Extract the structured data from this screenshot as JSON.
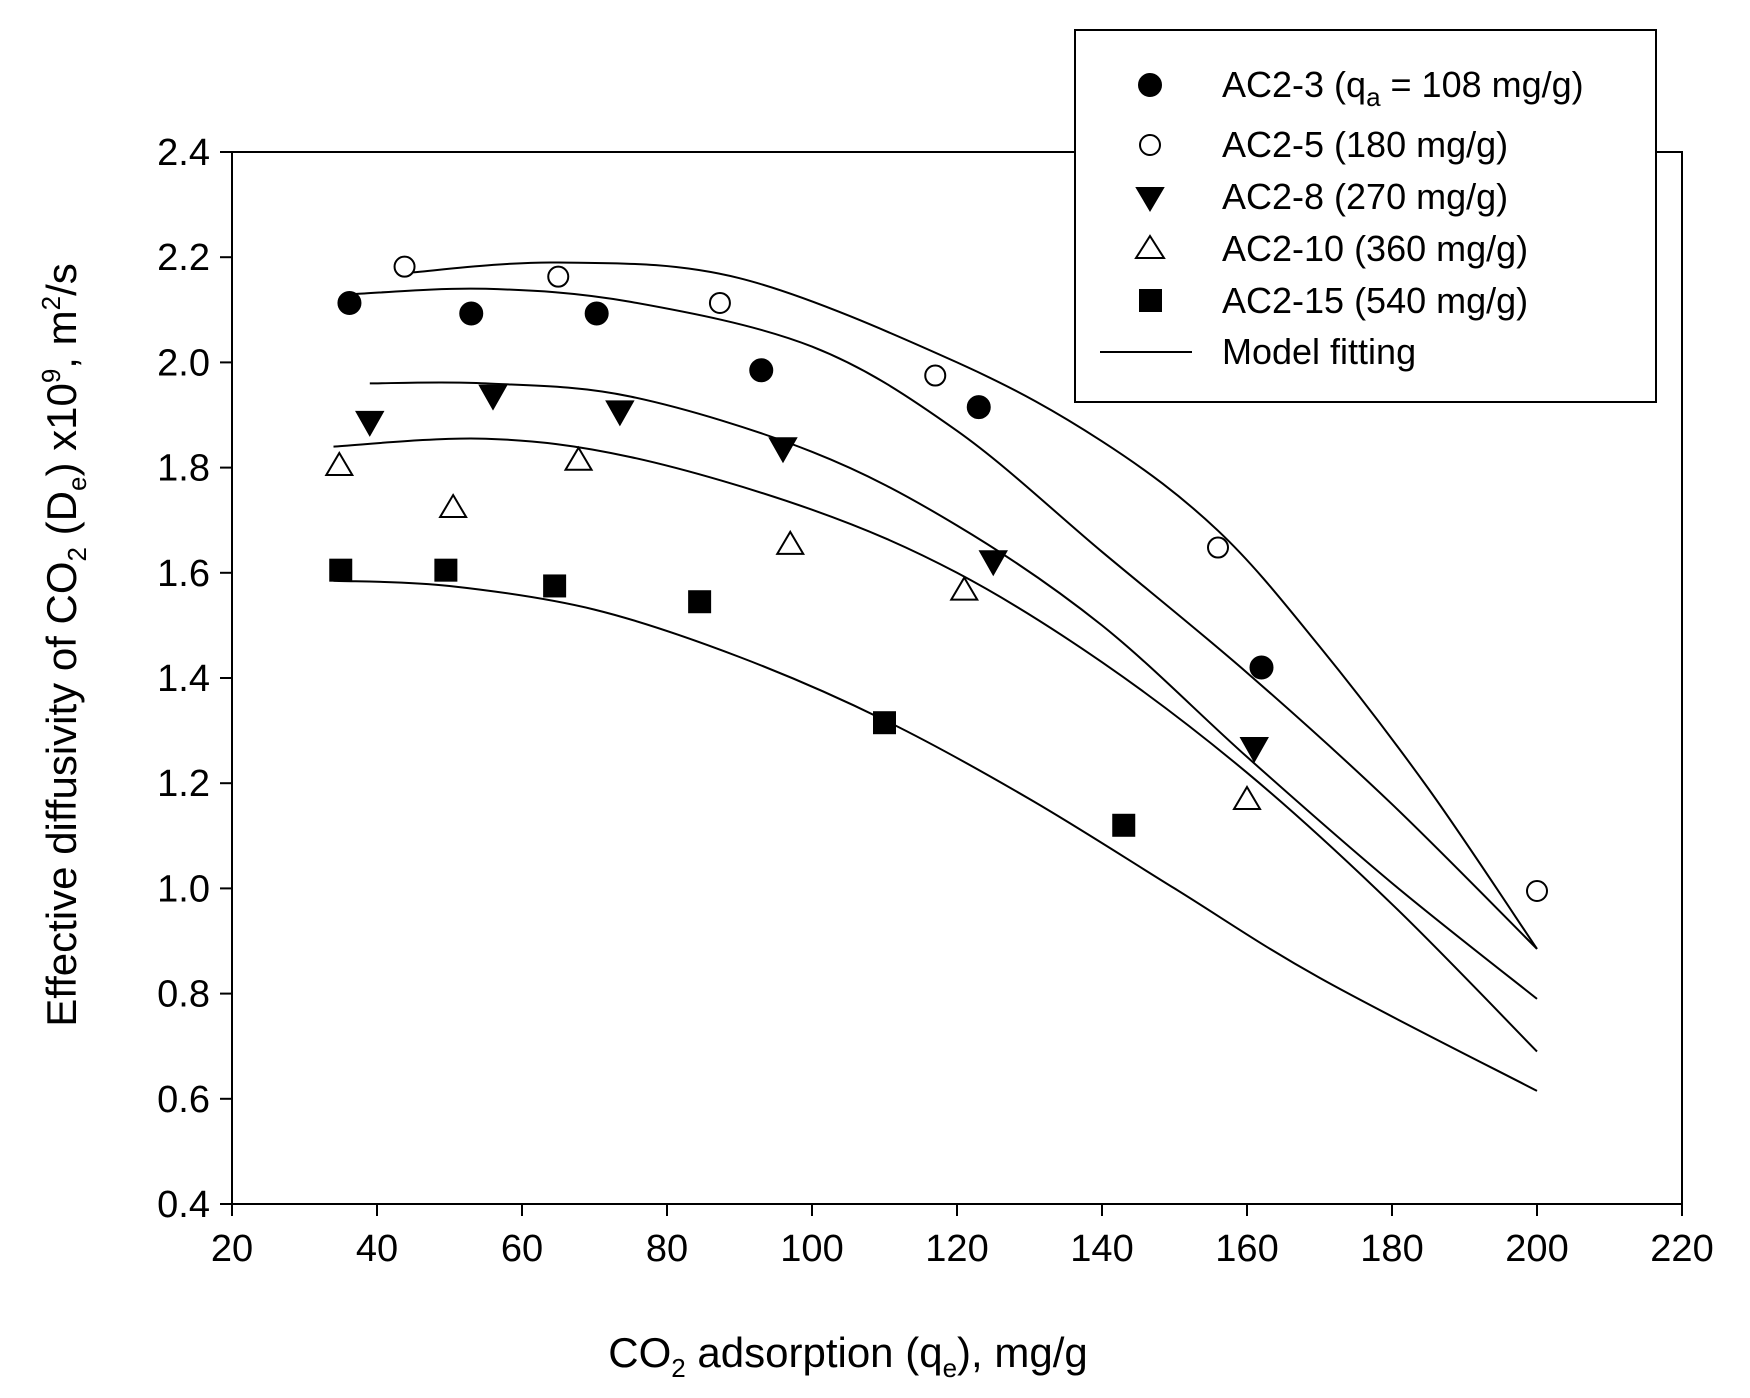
{
  "chart_data": {
    "type": "scatter",
    "xlabel": "CO2 adsorption (qe), mg/g",
    "xlabel_parts": {
      "pre": "CO",
      "sub1": "2",
      "mid": " adsorption (q",
      "sub2": "e",
      "post": "), mg/g"
    },
    "ylabel": "Effective diffusivity of CO2 (De) x10^9, m^2/s",
    "ylabel_parts": {
      "pre": "Effective diffusivity of CO",
      "sub1": "2",
      "mid1": " (D",
      "sub2": "e",
      "mid2": ") x10",
      "sup1": "9",
      "mid3": ", m",
      "sup2": "2",
      "post": "/s"
    },
    "xlim": [
      20,
      220
    ],
    "ylim": [
      0.4,
      2.4
    ],
    "x_ticks": [
      "20",
      "40",
      "60",
      "80",
      "100",
      "120",
      "140",
      "160",
      "180",
      "200",
      "220"
    ],
    "y_ticks": [
      "0.4",
      "0.6",
      "0.8",
      "1.0",
      "1.2",
      "1.4",
      "1.6",
      "1.8",
      "2.0",
      "2.2",
      "2.4"
    ],
    "legend_position": "top-right",
    "series": [
      {
        "name": "AC2-3 (qa = 108 mg/g)",
        "label_parts": {
          "pre": "AC2-3 (q",
          "sub": "a",
          "post": " = 108 mg/g)"
        },
        "marker": "filled-circle",
        "points": [
          [
            36.2,
            2.113
          ],
          [
            53,
            2.093
          ],
          [
            70.3,
            2.093
          ],
          [
            93,
            1.985
          ],
          [
            123,
            1.915
          ],
          [
            162,
            1.42
          ]
        ]
      },
      {
        "name": "AC2-5 (180 mg/g)",
        "label_parts": {
          "pre": "AC2-5 (180 mg/g)",
          "sub": "",
          "post": ""
        },
        "marker": "open-circle",
        "points": [
          [
            43.8,
            2.182
          ],
          [
            65,
            2.163
          ],
          [
            87.3,
            2.113
          ],
          [
            117,
            1.975
          ],
          [
            156,
            1.648
          ],
          [
            200,
            0.995
          ]
        ]
      },
      {
        "name": "AC2-8 (270 mg/g)",
        "label_parts": {
          "pre": "AC2-8 (270 mg/g)",
          "sub": "",
          "post": ""
        },
        "marker": "filled-triangle-down",
        "points": [
          [
            39,
            1.885
          ],
          [
            56,
            1.935
          ],
          [
            73.5,
            1.905
          ],
          [
            96,
            1.835
          ],
          [
            125,
            1.62
          ],
          [
            161,
            1.265
          ]
        ]
      },
      {
        "name": "AC2-10 (360 mg/g)",
        "label_parts": {
          "pre": "AC2-10 (360 mg/g)",
          "sub": "",
          "post": ""
        },
        "marker": "open-triangle-up",
        "points": [
          [
            34.8,
            1.805
          ],
          [
            50.5,
            1.725
          ],
          [
            67.8,
            1.815
          ],
          [
            97,
            1.655
          ],
          [
            121,
            1.568
          ],
          [
            160,
            1.17
          ]
        ]
      },
      {
        "name": "AC2-15 (540 mg/g)",
        "label_parts": {
          "pre": "AC2-15 (540 mg/g)",
          "sub": "",
          "post": ""
        },
        "marker": "filled-square",
        "points": [
          [
            35,
            1.605
          ],
          [
            49.5,
            1.605
          ],
          [
            64.5,
            1.575
          ],
          [
            84.5,
            1.545
          ],
          [
            110,
            1.315
          ],
          [
            143,
            1.12
          ]
        ]
      }
    ],
    "model_fitting": {
      "name": "Model fitting",
      "curves": [
        [
          [
            44,
            2.17
          ],
          [
            65,
            2.19
          ],
          [
            90,
            2.16
          ],
          [
            120,
            2.0
          ],
          [
            140,
            1.85
          ],
          [
            156,
            1.68
          ],
          [
            170,
            1.46
          ],
          [
            185,
            1.19
          ],
          [
            200,
            0.885
          ]
        ],
        [
          [
            37,
            2.13
          ],
          [
            55,
            2.14
          ],
          [
            75,
            2.115
          ],
          [
            100,
            2.03
          ],
          [
            120,
            1.87
          ],
          [
            140,
            1.64
          ],
          [
            160,
            1.41
          ],
          [
            180,
            1.16
          ],
          [
            200,
            0.885
          ]
        ],
        [
          [
            39,
            1.96
          ],
          [
            55,
            1.96
          ],
          [
            75,
            1.935
          ],
          [
            100,
            1.83
          ],
          [
            120,
            1.69
          ],
          [
            140,
            1.5
          ],
          [
            160,
            1.25
          ],
          [
            180,
            1.01
          ],
          [
            200,
            0.79
          ]
        ],
        [
          [
            34,
            1.84
          ],
          [
            55,
            1.855
          ],
          [
            75,
            1.82
          ],
          [
            100,
            1.72
          ],
          [
            120,
            1.6
          ],
          [
            140,
            1.43
          ],
          [
            160,
            1.22
          ],
          [
            180,
            0.97
          ],
          [
            200,
            0.69
          ]
        ],
        [
          [
            34,
            1.585
          ],
          [
            50,
            1.575
          ],
          [
            70,
            1.53
          ],
          [
            90,
            1.44
          ],
          [
            110,
            1.32
          ],
          [
            130,
            1.17
          ],
          [
            150,
            1.0
          ],
          [
            170,
            0.83
          ],
          [
            200,
            0.615
          ]
        ]
      ]
    }
  }
}
